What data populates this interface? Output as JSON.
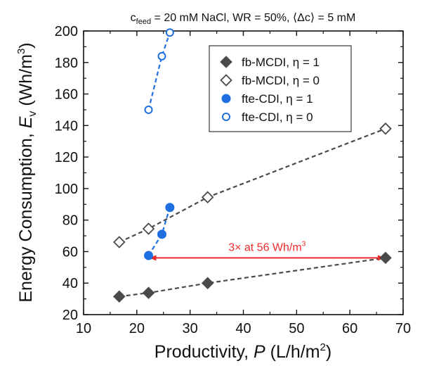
{
  "chart_data": {
    "type": "scatter",
    "title_parts": {
      "pre": "c",
      "sub": "feed",
      "post": " = 20 mM NaCl, WR = 50%, ⟨Δc⟩ = 5 mM"
    },
    "xlabel_parts": {
      "pre": "Productivity, ",
      "italic": "P",
      "post": " (L/h/m",
      "sup": "2",
      "end": ")"
    },
    "ylabel_parts": {
      "pre": "Energy Consumption, ",
      "italic": "E",
      "sub": "v",
      "post": " (Wh/m",
      "sup": "3",
      "end": ")"
    },
    "xlim": [
      10,
      70
    ],
    "ylim": [
      20,
      200
    ],
    "xticks": [
      "10",
      "20",
      "30",
      "40",
      "50",
      "60",
      "70"
    ],
    "yticks": [
      "20",
      "40",
      "60",
      "80",
      "100",
      "120",
      "140",
      "160",
      "180",
      "200"
    ],
    "grid": false,
    "legend_position": "top-center",
    "series": [
      {
        "name": "fb-MCDI, η = 1",
        "marker": "diamond",
        "filled": true,
        "color": "#4a4a4a",
        "x": [
          16.7,
          22.2,
          33.3,
          66.7
        ],
        "y": [
          31.5,
          33.8,
          40.0,
          56.0
        ]
      },
      {
        "name": "fb-MCDI, η = 0",
        "marker": "diamond",
        "filled": false,
        "color": "#4a4a4a",
        "x": [
          16.7,
          22.2,
          33.3,
          66.7
        ],
        "y": [
          66.0,
          74.5,
          94.5,
          138.0
        ]
      },
      {
        "name": "fte-CDI, η = 1",
        "marker": "circle",
        "filled": true,
        "color": "#1f6fe0",
        "x": [
          22.2,
          24.7,
          26.2
        ],
        "y": [
          57.5,
          71.0,
          88.0
        ]
      },
      {
        "name": "fte-CDI, η = 0",
        "marker": "circle",
        "filled": false,
        "color": "#1f6fe0",
        "x": [
          22.2,
          24.7,
          26.2
        ],
        "y": [
          150.0,
          184.0,
          199.0
        ]
      }
    ],
    "annotation": {
      "text_pre": "3× at 56 Wh/m",
      "text_sup": "3",
      "color": "#ee2b2b",
      "arrow_from": [
        66.7,
        56
      ],
      "arrow_to": [
        22.2,
        56
      ]
    }
  }
}
